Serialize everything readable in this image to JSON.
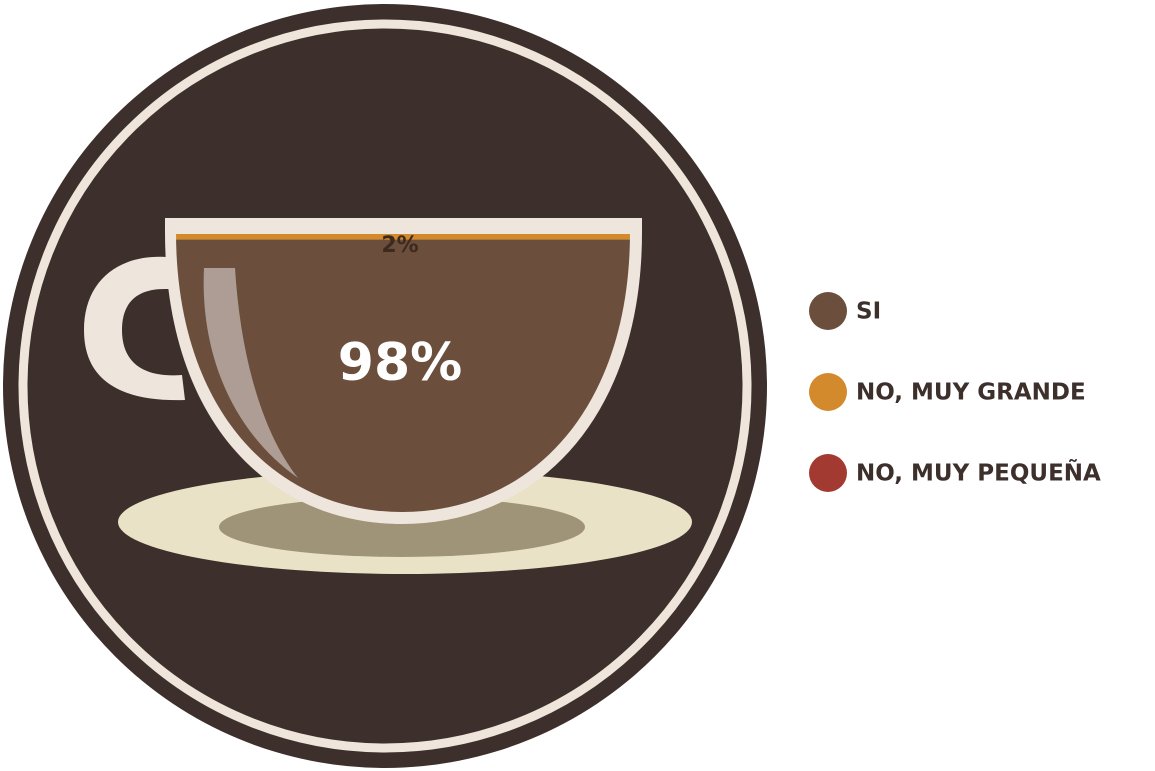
{
  "chart_data": {
    "type": "cup",
    "categories": [
      "SI",
      "NO, MUY GRANDE",
      "NO, MUY PEQUEÑA"
    ],
    "values": [
      98,
      2,
      0
    ],
    "value_labels": [
      "98%",
      "2%",
      null
    ],
    "colors": [
      "#6b4e3c",
      "#d28a2c",
      "#a33a31"
    ],
    "legend": "right"
  }
}
